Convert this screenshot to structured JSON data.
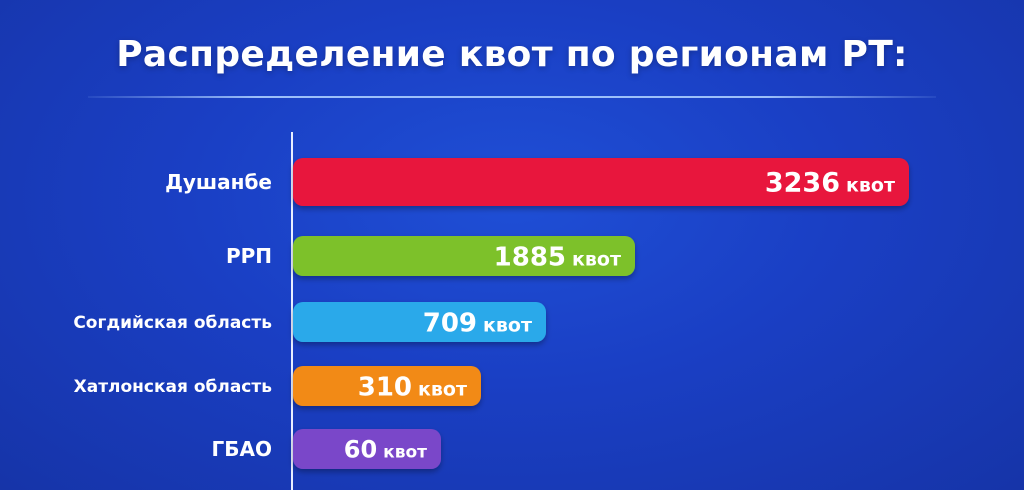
{
  "chart_data": {
    "type": "bar",
    "orientation": "horizontal",
    "title": "Распределение квот по регионам РТ:",
    "categories": [
      "Душанбе",
      "РРП",
      "Согдийская область",
      "Хатлонская область",
      "ГБАО"
    ],
    "values": [
      3236,
      1885,
      709,
      310,
      60
    ],
    "unit": "квот",
    "colors": [
      "#e8193c",
      "#7dc12c",
      "#2aa9ea",
      "#f28a14",
      "#7a47c9"
    ],
    "grid": false,
    "legend": "none"
  }
}
